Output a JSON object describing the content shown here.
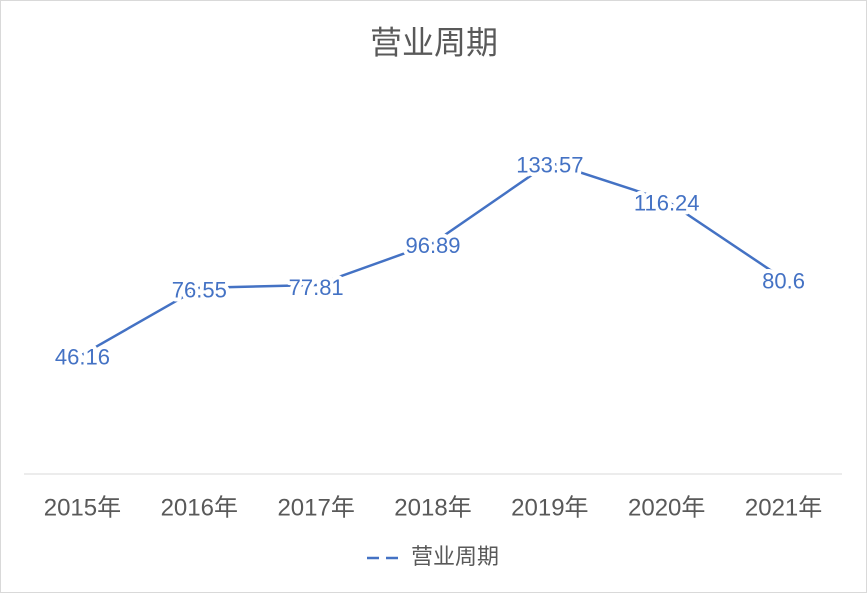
{
  "chart_data": {
    "type": "line",
    "title": "营业周期",
    "categories": [
      "2015年",
      "2016年",
      "2017年",
      "2018年",
      "2019年",
      "2020年",
      "2021年"
    ],
    "series": [
      {
        "name": "营业周期",
        "color": "#4472c4",
        "values": [
          46.16,
          76.55,
          77.81,
          96.89,
          133.57,
          116.24,
          80.6
        ]
      }
    ],
    "grid": false,
    "legend": "bottom"
  }
}
